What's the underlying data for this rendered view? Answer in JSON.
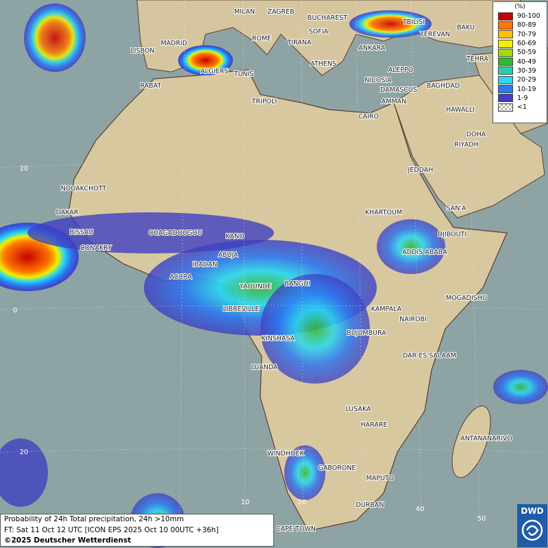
{
  "map": {
    "cities": [
      "MILAN",
      "ZAGREB",
      "BUCHAREST",
      "TBILISI",
      "SOFIA",
      "ROME",
      "TIRANA",
      "YEREVAN",
      "BAKU",
      "LISBON",
      "MADRID",
      "ANKARA",
      "TEHRA",
      "ALGIERS",
      "TUNIS",
      "ATHENS",
      "ALEPPO",
      "RABAT",
      "NICOSIA",
      "BAGHDAD",
      "DAMASCUS",
      "TRIPOLI",
      "AMMAN",
      "HAWALLI",
      "CAIRO",
      "DOHA",
      "RIYADH",
      "JEDDAH",
      "NOUAKCHOTT",
      "DAKAR",
      "KHARTOUM",
      "SAN'A",
      "BISSAU",
      "OUAGADOUGOU",
      "KANO",
      "DJIBOUTI",
      "CONAKRY",
      "ABUJA",
      "ADDIS ABABA",
      "IBADAN",
      "ACCRA",
      "YAOUNDE",
      "BANGUI",
      "MOGADISHU",
      "LIBREVILLE",
      "KAMPALA",
      "NAIROBI",
      "KINSHASA",
      "BUJUMBURA",
      "DAR ES SALAAM",
      "LUANDA",
      "LUSAKA",
      "HARARE",
      "ANTANANARIVO",
      "WINDHOEK",
      "GABORONE",
      "MAPUTO",
      "DURBAN",
      "CAPE TOWN"
    ],
    "grid_labels": [
      20,
      0,
      20,
      10,
      20,
      40,
      50
    ]
  },
  "legend": {
    "title": "(%)",
    "entries": [
      {
        "label": "90-100",
        "color": "#c80000"
      },
      {
        "label": "80-89",
        "color": "#ff7800"
      },
      {
        "label": "70-79",
        "color": "#ffc000"
      },
      {
        "label": "60-69",
        "color": "#f0f000"
      },
      {
        "label": "50-59",
        "color": "#a0dc00"
      },
      {
        "label": "40-49",
        "color": "#30b830"
      },
      {
        "label": "30-39",
        "color": "#20d0b0"
      },
      {
        "label": "20-29",
        "color": "#28d8f0"
      },
      {
        "label": "10-19",
        "color": "#2c78f0"
      },
      {
        "label": "1-9",
        "color": "#4040c0"
      },
      {
        "label": "<1",
        "color": "#b4b4b4"
      }
    ]
  },
  "caption": {
    "line1": "Probability of 24h Total precipitation, 24h >10mm",
    "line2": "FT: Sat 11 Oct 12 UTC [ICON EPS 2025 Oct 10 00UTC +36h]",
    "line3": "©2025 Deutscher Wetterdienst"
  },
  "logo": "DWD"
}
